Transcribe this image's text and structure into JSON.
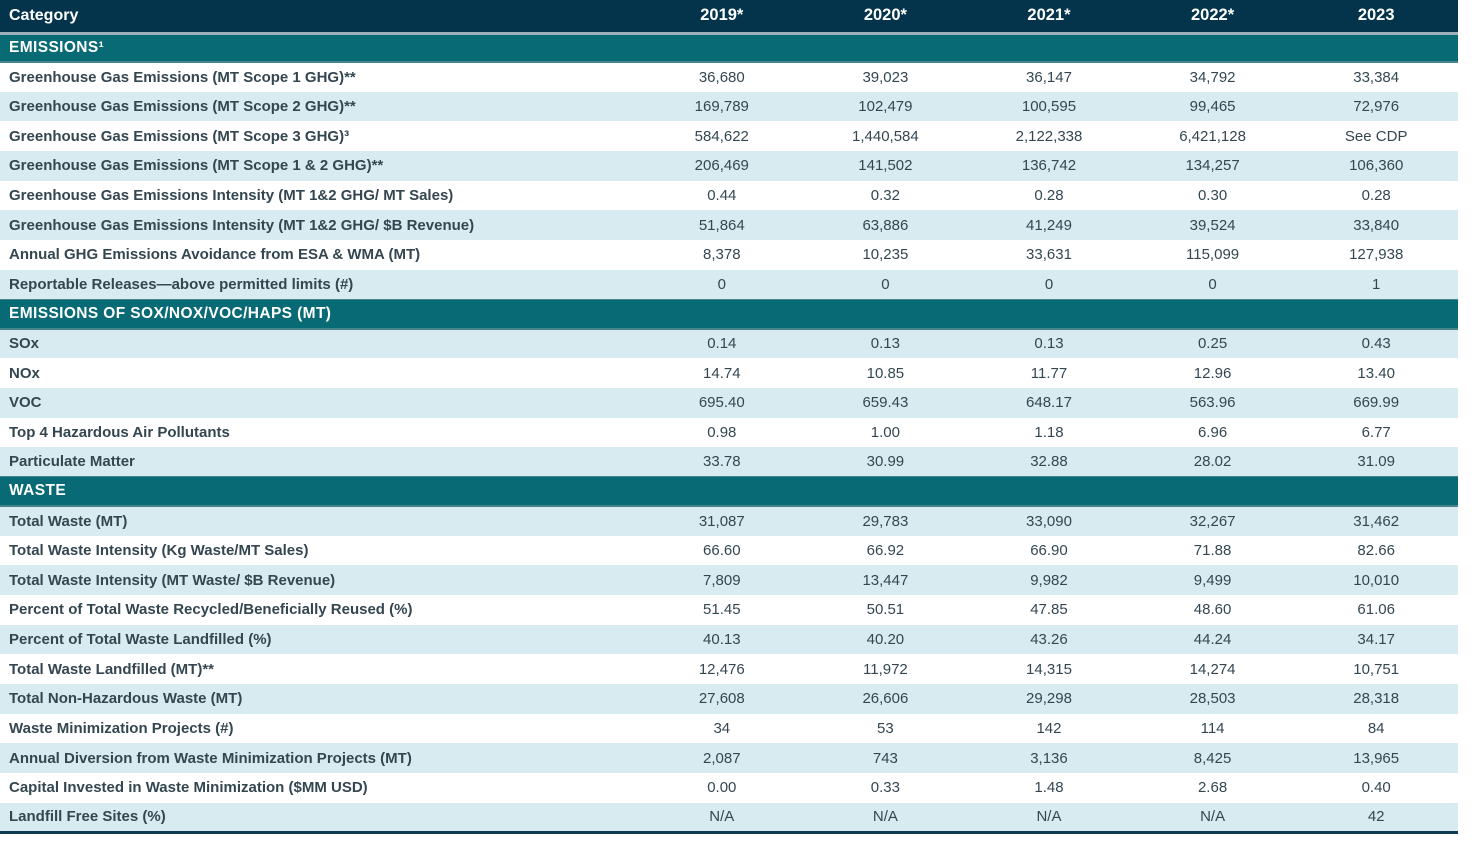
{
  "colors": {
    "header_bg": "#04344b",
    "section_bg": "#076a74",
    "shaded_row_bg": "#d7ebf1",
    "row_bg": "#ffffff",
    "text_dark": "#344751",
    "header_text": "#ffffff",
    "header_separator": "#9fb0ba",
    "section_edge": "#49838c",
    "table_bottom_border": "#0d3b52"
  },
  "table": {
    "title_column": "Category",
    "year_columns": [
      "2019*",
      "2020*",
      "2021*",
      "2022*",
      "2023"
    ],
    "sections": [
      {
        "label": "EMISSIONS¹",
        "rows": [
          {
            "label": "Greenhouse Gas Emissions (MT Scope 1 GHG)**",
            "values": [
              "36,680",
              "39,023",
              "36,147",
              "34,792",
              "33,384"
            ]
          },
          {
            "label": "Greenhouse Gas Emissions (MT Scope 2 GHG)**",
            "values": [
              "169,789",
              "102,479",
              "100,595",
              "99,465",
              "72,976"
            ]
          },
          {
            "label": "Greenhouse Gas Emissions (MT Scope 3 GHG)³",
            "values": [
              "584,622",
              "1,440,584",
              "2,122,338",
              "6,421,128",
              "See CDP"
            ]
          },
          {
            "label": "Greenhouse Gas Emissions (MT Scope 1 & 2 GHG)**",
            "values": [
              "206,469",
              "141,502",
              "136,742",
              "134,257",
              "106,360"
            ]
          },
          {
            "label": "Greenhouse Gas Emissions Intensity (MT 1&2 GHG/ MT Sales)",
            "values": [
              "0.44",
              "0.32",
              "0.28",
              "0.30",
              "0.28"
            ]
          },
          {
            "label": "Greenhouse Gas Emissions Intensity (MT 1&2 GHG/ $B Revenue)",
            "values": [
              "51,864",
              "63,886",
              "41,249",
              "39,524",
              "33,840"
            ]
          },
          {
            "label": "Annual GHG Emissions Avoidance from ESA & WMA (MT)",
            "values": [
              "8,378",
              "10,235",
              "33,631",
              "115,099",
              "127,938"
            ]
          },
          {
            "label": "Reportable Releases—above permitted limits (#)",
            "values": [
              "0",
              "0",
              "0",
              "0",
              "1"
            ]
          }
        ]
      },
      {
        "label": "EMISSIONS OF SOX/NOX/VOC/HAPS (MT)",
        "rows": [
          {
            "label": "SOx",
            "values": [
              "0.14",
              "0.13",
              "0.13",
              "0.25",
              "0.43"
            ]
          },
          {
            "label": "NOx",
            "values": [
              "14.74",
              "10.85",
              "11.77",
              "12.96",
              "13.40"
            ]
          },
          {
            "label": "VOC",
            "values": [
              "695.40",
              "659.43",
              "648.17",
              "563.96",
              "669.99"
            ]
          },
          {
            "label": "Top 4 Hazardous Air Pollutants",
            "values": [
              "0.98",
              "1.00",
              "1.18",
              "6.96",
              "6.77"
            ]
          },
          {
            "label": "Particulate Matter",
            "values": [
              "33.78",
              "30.99",
              "32.88",
              "28.02",
              "31.09"
            ]
          }
        ]
      },
      {
        "label": "WASTE",
        "rows": [
          {
            "label": "Total Waste (MT)",
            "values": [
              "31,087",
              "29,783",
              "33,090",
              "32,267",
              "31,462"
            ]
          },
          {
            "label": "Total Waste Intensity (Kg Waste/MT Sales)",
            "values": [
              "66.60",
              "66.92",
              "66.90",
              "71.88",
              "82.66"
            ]
          },
          {
            "label": "Total Waste Intensity (MT Waste/ $B Revenue)",
            "values": [
              "7,809",
              "13,447",
              "9,982",
              "9,499",
              "10,010"
            ]
          },
          {
            "label": "Percent of Total Waste Recycled/Beneficially Reused (%)",
            "values": [
              "51.45",
              "50.51",
              "47.85",
              "48.60",
              "61.06"
            ]
          },
          {
            "label": "Percent of Total Waste Landfilled (%)",
            "values": [
              "40.13",
              "40.20",
              "43.26",
              "44.24",
              "34.17"
            ]
          },
          {
            "label": "Total Waste Landfilled (MT)**",
            "values": [
              "12,476",
              "11,972",
              "14,315",
              "14,274",
              "10,751"
            ]
          },
          {
            "label": "Total Non-Hazardous Waste (MT)",
            "values": [
              "27,608",
              "26,606",
              "29,298",
              "28,503",
              "28,318"
            ]
          },
          {
            "label": "Waste Minimization Projects (#)",
            "values": [
              "34",
              "53",
              "142",
              "114",
              "84"
            ]
          },
          {
            "label": "Annual Diversion from Waste Minimization Projects (MT)",
            "values": [
              "2,087",
              "743",
              "3,136",
              "8,425",
              "13,965"
            ]
          },
          {
            "label": "Capital Invested in Waste Minimization ($MM USD)",
            "values": [
              "0.00",
              "0.33",
              "1.48",
              "2.68",
              "0.40"
            ]
          },
          {
            "label": "Landfill Free Sites (%)",
            "values": [
              "N/A",
              "N/A",
              "N/A",
              "N/A",
              "42"
            ]
          }
        ]
      }
    ]
  }
}
